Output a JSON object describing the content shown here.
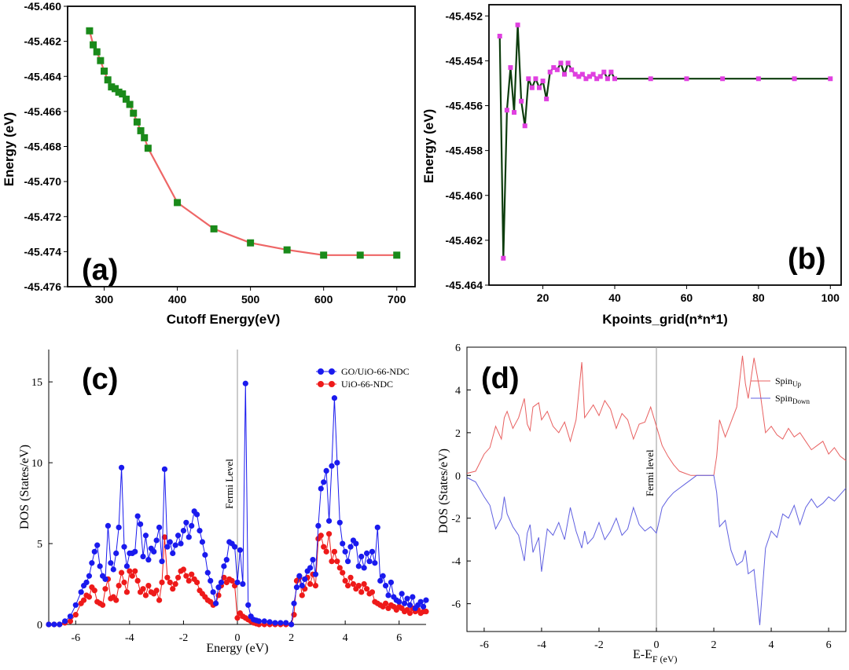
{
  "charts": {
    "a": {
      "type": "line",
      "panel_label": "(a)",
      "xlabel": "Cutoff Energy(eV)",
      "ylabel": "Energy (eV)",
      "xlim": [
        250,
        725
      ],
      "ylim": [
        -45.476,
        -45.46
      ],
      "xticks": [
        300,
        400,
        500,
        600,
        700
      ],
      "yticks": [
        -45.46,
        -45.462,
        -45.464,
        -45.466,
        -45.468,
        -45.47,
        -45.472,
        -45.474,
        -45.476
      ],
      "xtick_labels": [
        "300",
        "400",
        "500",
        "600",
        "700"
      ],
      "ytick_labels": [
        "-45.460",
        "-45.462",
        "-45.464",
        "-45.466",
        "-45.468",
        "-45.470",
        "-45.472",
        "-45.474",
        "-45.476"
      ],
      "line_color": "#ee6666",
      "marker_color": "#1a8a1a",
      "x": [
        280,
        285,
        290,
        295,
        300,
        305,
        310,
        315,
        320,
        325,
        330,
        335,
        340,
        345,
        350,
        355,
        360,
        400,
        450,
        500,
        550,
        600,
        650,
        700
      ],
      "y": [
        -45.4614,
        -45.4622,
        -45.4626,
        -45.4631,
        -45.4637,
        -45.4642,
        -45.4646,
        -45.4647,
        -45.4649,
        -45.465,
        -45.4653,
        -45.4656,
        -45.4661,
        -45.4666,
        -45.4671,
        -45.4675,
        -45.4681,
        -45.4712,
        -45.4727,
        -45.4735,
        -45.4739,
        -45.4742,
        -45.4742,
        -45.4742
      ]
    },
    "b": {
      "type": "line",
      "panel_label": "(b)",
      "xlabel": "Kpoints_grid(n*n*1)",
      "ylabel": "Energy (eV)",
      "xlim": [
        5,
        103
      ],
      "ylim": [
        -45.464,
        -45.4515
      ],
      "xticks": [
        20,
        40,
        60,
        80,
        100
      ],
      "yticks": [
        -45.452,
        -45.454,
        -45.456,
        -45.458,
        -45.46,
        -45.462,
        -45.464
      ],
      "xtick_labels": [
        "20",
        "40",
        "60",
        "80",
        "100"
      ],
      "ytick_labels": [
        "-45.452",
        "-45.454",
        "-45.456",
        "-45.458",
        "-45.460",
        "-45.462",
        "-45.464"
      ],
      "line_color": "#0d3d0d",
      "marker_color": "#e040e0",
      "x": [
        8,
        9,
        10,
        11,
        12,
        13,
        14,
        15,
        16,
        17,
        18,
        19,
        20,
        21,
        22,
        23,
        24,
        25,
        26,
        27,
        28,
        29,
        30,
        31,
        32,
        33,
        34,
        35,
        36,
        37,
        38,
        39,
        40,
        50,
        60,
        70,
        80,
        90,
        100
      ],
      "y": [
        -45.4529,
        -45.4628,
        -45.4562,
        -45.4543,
        -45.4563,
        -45.4524,
        -45.4558,
        -45.4569,
        -45.4548,
        -45.4552,
        -45.4548,
        -45.4552,
        -45.4549,
        -45.4557,
        -45.4545,
        -45.4543,
        -45.4544,
        -45.4541,
        -45.4546,
        -45.4541,
        -45.4544,
        -45.4546,
        -45.4547,
        -45.4546,
        -45.4548,
        -45.4547,
        -45.4546,
        -45.4548,
        -45.4547,
        -45.4545,
        -45.4548,
        -45.4545,
        -45.4548,
        -45.4548,
        -45.4548,
        -45.4548,
        -45.4548,
        -45.4548,
        -45.4548
      ]
    },
    "c": {
      "type": "line",
      "panel_label": "(c)",
      "xlabel": "Energy (eV)",
      "ylabel": "DOS (States/eV)",
      "xlim": [
        -7,
        7
      ],
      "ylim": [
        0,
        17
      ],
      "xticks": [
        -6,
        -4,
        -2,
        0,
        2,
        4,
        6
      ],
      "yticks": [
        0,
        5,
        10,
        15
      ],
      "xtick_labels": [
        "-6",
        "-4",
        "-2",
        "0",
        "2",
        "4",
        "6"
      ],
      "ytick_labels": [
        "0",
        "5",
        "10",
        "15"
      ],
      "fermi_label": "Fermi Level",
      "series": [
        {
          "name": "GO/UiO-66-NDC",
          "color": "#1a1aee",
          "x": [
            -7.0,
            -6.8,
            -6.6,
            -6.4,
            -6.2,
            -6.0,
            -5.8,
            -5.7,
            -5.6,
            -5.5,
            -5.4,
            -5.3,
            -5.2,
            -5.1,
            -5.0,
            -4.9,
            -4.8,
            -4.7,
            -4.6,
            -4.5,
            -4.4,
            -4.3,
            -4.2,
            -4.1,
            -4.0,
            -3.9,
            -3.8,
            -3.7,
            -3.6,
            -3.5,
            -3.4,
            -3.3,
            -3.2,
            -3.1,
            -3.0,
            -2.9,
            -2.8,
            -2.7,
            -2.6,
            -2.5,
            -2.4,
            -2.3,
            -2.2,
            -2.1,
            -2.0,
            -1.9,
            -1.8,
            -1.7,
            -1.6,
            -1.5,
            -1.4,
            -1.3,
            -1.2,
            -1.1,
            -1.0,
            -0.9,
            -0.8,
            -0.7,
            -0.6,
            -0.5,
            -0.4,
            -0.3,
            -0.2,
            -0.1,
            0.0,
            0.1,
            0.2,
            0.3,
            0.4,
            0.5,
            0.6,
            0.7,
            0.8,
            1.0,
            1.2,
            1.4,
            1.6,
            1.8,
            2.0,
            2.1,
            2.2,
            2.3,
            2.4,
            2.5,
            2.6,
            2.7,
            2.8,
            2.9,
            3.0,
            3.1,
            3.2,
            3.3,
            3.4,
            3.5,
            3.6,
            3.7,
            3.8,
            3.9,
            4.0,
            4.1,
            4.2,
            4.3,
            4.4,
            4.5,
            4.6,
            4.7,
            4.8,
            4.9,
            5.0,
            5.1,
            5.2,
            5.3,
            5.4,
            5.5,
            5.6,
            5.7,
            5.8,
            5.9,
            6.0,
            6.1,
            6.2,
            6.3,
            6.4,
            6.5,
            6.6,
            6.7,
            6.8,
            6.9,
            7.0
          ],
          "y": [
            0,
            0,
            0,
            0.2,
            0.5,
            1.2,
            2.0,
            2.4,
            2.6,
            3.0,
            3.8,
            4.5,
            4.9,
            3.6,
            3.0,
            2.8,
            6.1,
            3.8,
            3.4,
            4.4,
            6.0,
            9.7,
            4.8,
            3.6,
            4.4,
            4.4,
            4.5,
            6.7,
            6.2,
            4.2,
            5.5,
            4.0,
            4.7,
            4.5,
            5.2,
            6.0,
            3.9,
            9.6,
            4.8,
            5.1,
            4.4,
            4.9,
            5.5,
            5.0,
            5.8,
            6.3,
            5.4,
            6.1,
            7.0,
            6.8,
            5.8,
            5.1,
            4.3,
            3.2,
            2.7,
            2.0,
            1.3,
            2.3,
            2.6,
            3.6,
            4.0,
            5.1,
            5.0,
            4.8,
            2.6,
            4.6,
            2.5,
            14.9,
            1.2,
            0.5,
            0.3,
            0.25,
            0.2,
            0.2,
            0.15,
            0.1,
            0.1,
            0.1,
            0,
            1.3,
            2.3,
            3.0,
            2.4,
            2.8,
            3.3,
            3.5,
            4.0,
            3.1,
            6.1,
            8.4,
            8.8,
            9.5,
            6.4,
            9.8,
            14.0,
            10.0,
            6.3,
            5.0,
            4.5,
            3.9,
            4.8,
            5.2,
            5.0,
            3.6,
            4.2,
            3.5,
            4.4,
            3.9,
            4.5,
            3.8,
            6.0,
            2.7,
            3.0,
            2.4,
            1.8,
            2.6,
            1.7,
            1.5,
            1.4,
            1.9,
            1.3,
            1.6,
            1.2,
            1.7,
            1.0,
            1.2,
            1.4,
            1.1,
            1.5
          ]
        },
        {
          "name": "UiO-66-NDC",
          "color": "#ee1a1a",
          "x": [
            -7.0,
            -6.8,
            -6.6,
            -6.4,
            -6.2,
            -6.0,
            -5.8,
            -5.7,
            -5.6,
            -5.5,
            -5.4,
            -5.3,
            -5.2,
            -5.1,
            -5.0,
            -4.9,
            -4.8,
            -4.7,
            -4.6,
            -4.5,
            -4.4,
            -4.3,
            -4.2,
            -4.1,
            -4.0,
            -3.9,
            -3.8,
            -3.7,
            -3.6,
            -3.5,
            -3.4,
            -3.3,
            -3.2,
            -3.1,
            -3.0,
            -2.9,
            -2.8,
            -2.7,
            -2.6,
            -2.5,
            -2.4,
            -2.3,
            -2.2,
            -2.1,
            -2.0,
            -1.9,
            -1.8,
            -1.7,
            -1.6,
            -1.5,
            -1.4,
            -1.3,
            -1.2,
            -1.1,
            -1.0,
            -0.9,
            -0.8,
            -0.7,
            -0.6,
            -0.5,
            -0.4,
            -0.3,
            -0.2,
            -0.1,
            0.0,
            0.1,
            0.2,
            0.3,
            0.4,
            0.5,
            0.6,
            0.7,
            0.8,
            1.0,
            1.2,
            1.4,
            1.6,
            1.8,
            2.0,
            2.1,
            2.2,
            2.3,
            2.4,
            2.5,
            2.6,
            2.7,
            2.8,
            2.9,
            3.0,
            3.1,
            3.2,
            3.3,
            3.4,
            3.5,
            3.6,
            3.7,
            3.8,
            3.9,
            4.0,
            4.1,
            4.2,
            4.3,
            4.4,
            4.5,
            4.6,
            4.7,
            4.8,
            4.9,
            5.0,
            5.1,
            5.2,
            5.3,
            5.4,
            5.5,
            5.6,
            5.7,
            5.8,
            5.9,
            6.0,
            6.1,
            6.2,
            6.3,
            6.4,
            6.5,
            6.6,
            6.7,
            6.8,
            6.9,
            7.0
          ],
          "y": [
            0,
            0,
            0,
            0.1,
            0.2,
            0.6,
            1.3,
            1.5,
            1.8,
            1.7,
            2.3,
            2.1,
            1.4,
            1.3,
            1.2,
            2.2,
            2.8,
            1.6,
            1.7,
            1.5,
            2.4,
            3.2,
            2.6,
            2.0,
            3.3,
            3.0,
            3.3,
            2.7,
            2.0,
            2.2,
            1.8,
            2.4,
            2.0,
            1.9,
            2.1,
            1.5,
            2.6,
            5.4,
            2.9,
            2.6,
            2.2,
            2.5,
            2.9,
            3.3,
            3.4,
            3.0,
            2.7,
            3.1,
            2.8,
            2.6,
            2.1,
            1.9,
            1.7,
            1.5,
            1.4,
            1.2,
            1.3,
            1.8,
            2.4,
            2.9,
            2.6,
            2.8,
            2.7,
            2.4,
            0.4,
            0.7,
            0.5,
            0.4,
            0.3,
            0.2,
            0.1,
            0.05,
            0,
            0,
            0,
            0,
            0,
            0,
            0,
            0.6,
            2.7,
            2.9,
            1.8,
            2.2,
            2.9,
            2.5,
            3.1,
            2.4,
            5.3,
            5.5,
            4.8,
            4.5,
            5.6,
            3.9,
            4.5,
            3.9,
            3.5,
            3.2,
            2.7,
            2.4,
            2.9,
            2.5,
            2.2,
            2.4,
            2.0,
            2.5,
            2.2,
            1.9,
            2.0,
            1.4,
            1.3,
            1.2,
            1.1,
            1.3,
            1.0,
            1.2,
            1.1,
            0.9,
            1.1,
            1.0,
            0.8,
            0.9,
            0.7,
            1.0,
            0.8,
            0.9,
            0.7,
            0.8,
            0.8
          ]
        }
      ]
    },
    "d": {
      "type": "line",
      "panel_label": "(d)",
      "xlabel": "E-E",
      "xlabel_sub": "F (eV)",
      "ylabel": "DOS (States/eV)",
      "xlim": [
        -6.6,
        6.6
      ],
      "ylim": [
        -7.3,
        6.0
      ],
      "xticks": [
        -6,
        -4,
        -2,
        0,
        2,
        4,
        6
      ],
      "yticks": [
        6,
        4,
        2,
        0,
        -2,
        -4,
        -6
      ],
      "xtick_labels": [
        "-6",
        "-4",
        "-2",
        "0",
        "2",
        "4",
        "6"
      ],
      "ytick_labels": [
        "6",
        "4",
        "2",
        "0",
        "-2",
        "-4",
        "-6"
      ],
      "fermi_label": "Fermi level",
      "series": [
        {
          "name": "Spin",
          "name_sub": "Up",
          "color": "#e86060",
          "x": [
            -6.6,
            -6.3,
            -6.0,
            -5.8,
            -5.6,
            -5.4,
            -5.3,
            -5.2,
            -5.0,
            -4.8,
            -4.6,
            -4.5,
            -4.4,
            -4.3,
            -4.1,
            -4.0,
            -3.8,
            -3.6,
            -3.4,
            -3.2,
            -3.0,
            -2.8,
            -2.6,
            -2.5,
            -2.4,
            -2.2,
            -2.0,
            -1.8,
            -1.6,
            -1.4,
            -1.2,
            -1.0,
            -0.8,
            -0.6,
            -0.4,
            -0.2,
            0.0,
            0.2,
            0.4,
            0.6,
            0.8,
            1.0,
            1.2,
            1.4,
            1.6,
            1.8,
            2.0,
            2.1,
            2.2,
            2.4,
            2.6,
            2.8,
            3.0,
            3.1,
            3.2,
            3.4,
            3.6,
            3.8,
            4.0,
            4.2,
            4.4,
            4.6,
            4.8,
            5.0,
            5.2,
            5.4,
            5.6,
            5.8,
            6.0,
            6.2,
            6.4,
            6.6
          ],
          "y": [
            0.1,
            0.2,
            1.0,
            1.3,
            2.3,
            1.7,
            2.7,
            3.0,
            2.2,
            2.7,
            3.6,
            2.4,
            2.1,
            3.2,
            3.4,
            2.6,
            3.0,
            2.3,
            2.0,
            2.5,
            1.6,
            2.6,
            5.3,
            2.7,
            2.9,
            3.3,
            2.8,
            3.5,
            3.1,
            2.2,
            2.9,
            2.6,
            1.7,
            2.4,
            2.5,
            3.2,
            2.3,
            1.4,
            0.9,
            0.5,
            0.2,
            0.1,
            0,
            0,
            0,
            0,
            0,
            0.9,
            2.6,
            1.8,
            2.5,
            3.2,
            5.6,
            4.3,
            3.6,
            5.5,
            4.0,
            2.0,
            2.3,
            1.9,
            1.7,
            2.2,
            1.8,
            2.0,
            1.6,
            1.2,
            1.4,
            1.6,
            1.0,
            1.3,
            0.9,
            0.7
          ]
        },
        {
          "name": "Spin",
          "name_sub": "Down",
          "color": "#6060e0",
          "x": [
            -6.6,
            -6.3,
            -6.0,
            -5.8,
            -5.6,
            -5.4,
            -5.3,
            -5.2,
            -5.0,
            -4.8,
            -4.6,
            -4.5,
            -4.4,
            -4.3,
            -4.1,
            -4.0,
            -3.8,
            -3.6,
            -3.4,
            -3.2,
            -3.0,
            -2.8,
            -2.6,
            -2.5,
            -2.4,
            -2.2,
            -2.0,
            -1.8,
            -1.6,
            -1.4,
            -1.2,
            -1.0,
            -0.8,
            -0.6,
            -0.4,
            -0.2,
            0.0,
            0.2,
            0.4,
            0.6,
            0.8,
            1.0,
            1.2,
            1.4,
            1.6,
            1.8,
            2.0,
            2.1,
            2.2,
            2.4,
            2.6,
            2.8,
            3.0,
            3.1,
            3.2,
            3.4,
            3.6,
            3.8,
            4.0,
            4.2,
            4.4,
            4.6,
            4.8,
            5.0,
            5.2,
            5.4,
            5.6,
            5.8,
            6.0,
            6.2,
            6.4,
            6.6
          ],
          "y": [
            -0.1,
            -0.3,
            -1.0,
            -1.4,
            -2.5,
            -2.0,
            -1.0,
            -1.8,
            -2.4,
            -2.8,
            -4.0,
            -2.7,
            -2.3,
            -3.6,
            -2.9,
            -4.5,
            -2.5,
            -2.8,
            -2.2,
            -3.0,
            -1.5,
            -2.6,
            -3.4,
            -2.6,
            -3.2,
            -2.9,
            -2.2,
            -3.0,
            -2.6,
            -2.0,
            -2.8,
            -2.5,
            -1.5,
            -2.3,
            -2.6,
            -2.4,
            -2.7,
            -1.5,
            -1.1,
            -0.8,
            -0.6,
            -0.4,
            -0.2,
            0,
            0,
            0,
            0,
            -0.8,
            -2.4,
            -2.1,
            -3.5,
            -4.2,
            -4.0,
            -3.5,
            -4.6,
            -4.4,
            -7.0,
            -3.4,
            -2.6,
            -2.9,
            -1.8,
            -2.0,
            -1.4,
            -2.3,
            -1.5,
            -1.1,
            -1.5,
            -1.3,
            -1.0,
            -1.2,
            -0.9,
            -0.6
          ]
        }
      ]
    }
  }
}
